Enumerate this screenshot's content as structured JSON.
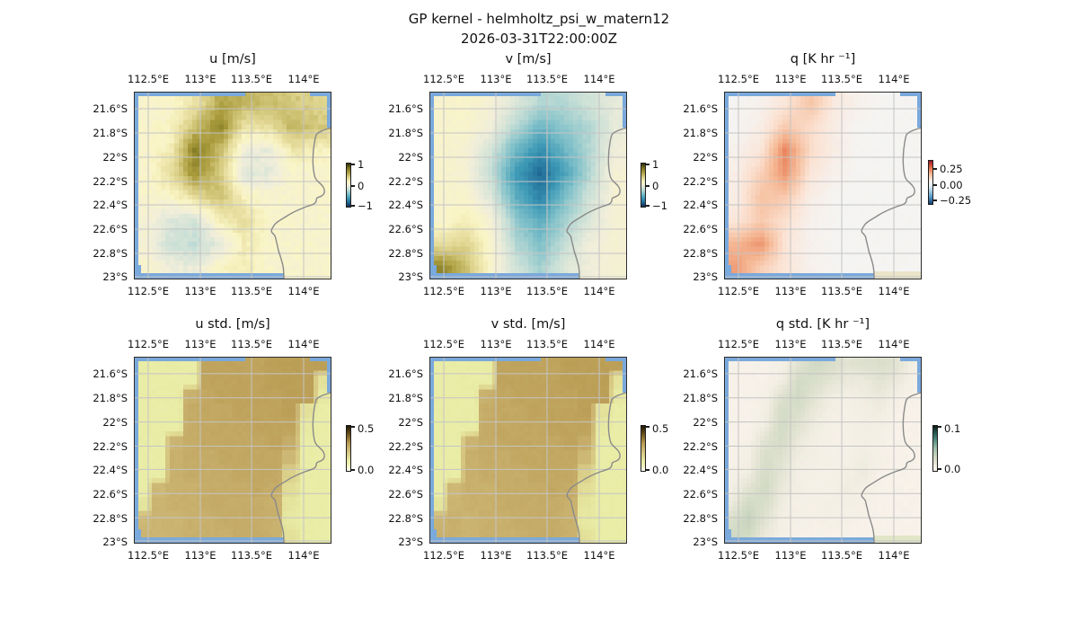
{
  "figure": {
    "title": "GP kernel - helmholtz_psi_w_matern12",
    "subtitle": "2026-03-31T22:00:00Z"
  },
  "axes": {
    "x_ticks": [
      "112.5°E",
      "113°E",
      "113.5°E",
      "114°E"
    ],
    "y_ticks": [
      "21.6°S",
      "21.8°S",
      "22°S",
      "22.2°S",
      "22.4°S",
      "22.6°S",
      "22.8°S",
      "23°S"
    ]
  },
  "panels": [
    {
      "title": "u [m/s]",
      "colorbar_ticks": [
        "1",
        "0",
        "−1"
      ]
    },
    {
      "title": "v [m/s]",
      "colorbar_ticks": [
        "1",
        "0",
        "−1"
      ]
    },
    {
      "title": "q [K hr ⁻¹]",
      "colorbar_ticks": [
        "0.25",
        "0.00",
        "−0.25"
      ]
    },
    {
      "title": "u std. [m/s]",
      "colorbar_ticks": [
        "0.5",
        "0.0"
      ]
    },
    {
      "title": "v std. [m/s]",
      "colorbar_ticks": [
        "0.5",
        "0.0"
      ]
    },
    {
      "title": "q std. [K hr ⁻¹]",
      "colorbar_ticks": [
        "0.1",
        "0.0"
      ]
    }
  ],
  "colors": {
    "ocean_edge": "#7aa9dc",
    "coastline": "#8a8a8a",
    "gridline": "#c4c4c4",
    "frame": "#2b2b2b",
    "land_patch_q": "#eae4c9",
    "land_patch_qstd": "#e0e6c6",
    "background": "#ffffff"
  },
  "colormaps": {
    "uv": [
      [
        0,
        "#132a52"
      ],
      [
        0.1,
        "#1f6b97"
      ],
      [
        0.2,
        "#3e9ab6"
      ],
      [
        0.3,
        "#7fc0c9"
      ],
      [
        0.4,
        "#c6ded6"
      ],
      [
        0.5,
        "#f1eeda"
      ],
      [
        0.57,
        "#faf5c6"
      ],
      [
        0.68,
        "#ddd28b"
      ],
      [
        0.8,
        "#a99b3c"
      ],
      [
        0.9,
        "#77701e"
      ],
      [
        1,
        "#2e2b08"
      ]
    ],
    "q": [
      [
        0,
        "#123c6d"
      ],
      [
        0.15,
        "#4f93c6"
      ],
      [
        0.3,
        "#a6cde2"
      ],
      [
        0.42,
        "#e3eef4"
      ],
      [
        0.5,
        "#f5f4f2"
      ],
      [
        0.58,
        "#fbe3d4"
      ],
      [
        0.7,
        "#f5b793"
      ],
      [
        0.8,
        "#e8825b"
      ],
      [
        0.9,
        "#cc4c38"
      ],
      [
        1,
        "#9a1728"
      ]
    ],
    "std": [
      [
        0,
        "#fdfdf0"
      ],
      [
        0.15,
        "#eef0b2"
      ],
      [
        0.22,
        "#e9eda6"
      ],
      [
        0.35,
        "#dcd28c"
      ],
      [
        0.5,
        "#cbb472"
      ],
      [
        0.62,
        "#b99b52"
      ],
      [
        0.8,
        "#71581f"
      ],
      [
        1,
        "#1f1604"
      ]
    ],
    "qstd": [
      [
        0,
        "#fdf5f0"
      ],
      [
        0.1,
        "#f3efe4"
      ],
      [
        0.2,
        "#e2e3d2"
      ],
      [
        0.32,
        "#ccd7c0"
      ],
      [
        0.5,
        "#9fbfad"
      ],
      [
        0.7,
        "#4d8a7e"
      ],
      [
        0.85,
        "#22564f"
      ],
      [
        1,
        "#0b1a15"
      ]
    ]
  },
  "chart_data": [
    {
      "type": "heatmap",
      "title": "u [m/s]",
      "units": "m/s",
      "vmin": -1,
      "vmax": 1,
      "colorbar_ticks": [
        1,
        0,
        -1
      ],
      "colormap": "uv",
      "noise": 0.07,
      "sharp": false,
      "x_centers": [
        112.45,
        112.7,
        112.95,
        113.2,
        113.45,
        113.7,
        113.95,
        114.2
      ],
      "y_centers": [
        21.55,
        21.75,
        21.95,
        22.15,
        22.35,
        22.55,
        22.75,
        22.95
      ],
      "values": [
        [
          0.1,
          0.1,
          0.25,
          0.55,
          0.5,
          0.45,
          0.4,
          0.35
        ],
        [
          0.1,
          0.15,
          0.45,
          0.7,
          0.25,
          0.3,
          0.5,
          0.4
        ],
        [
          0.1,
          0.2,
          0.75,
          0.45,
          0.0,
          -0.05,
          0.25,
          0.15
        ],
        [
          0.1,
          0.3,
          0.65,
          0.4,
          -0.1,
          -0.05,
          0.1,
          0.1
        ],
        [
          0.1,
          0.1,
          0.3,
          0.45,
          0.15,
          0.1,
          0.1,
          0.1
        ],
        [
          0.05,
          -0.1,
          -0.15,
          0.2,
          0.3,
          0.1,
          0.1,
          0.1
        ],
        [
          0.05,
          -0.15,
          -0.2,
          -0.05,
          0.2,
          0.1,
          0.1,
          0.1
        ],
        [
          0.1,
          0.0,
          -0.05,
          0.15,
          0.2,
          0.1,
          0.1,
          0.1
        ]
      ]
    },
    {
      "type": "heatmap",
      "title": "v [m/s]",
      "units": "m/s",
      "vmin": -1,
      "vmax": 1,
      "colorbar_ticks": [
        1,
        0,
        -1
      ],
      "colormap": "uv",
      "noise": 0.04,
      "sharp": false,
      "x_centers": [
        112.45,
        112.7,
        112.95,
        113.2,
        113.45,
        113.7,
        113.95,
        114.2
      ],
      "y_centers": [
        21.55,
        21.75,
        21.95,
        22.15,
        22.35,
        22.55,
        22.75,
        22.95
      ],
      "values": [
        [
          0.1,
          0.1,
          0.05,
          -0.1,
          -0.25,
          -0.25,
          -0.15,
          -0.05
        ],
        [
          0.1,
          0.1,
          0.0,
          -0.25,
          -0.45,
          -0.35,
          -0.25,
          -0.05
        ],
        [
          0.1,
          0.05,
          -0.15,
          -0.45,
          -0.65,
          -0.45,
          -0.25,
          0.0
        ],
        [
          0.1,
          0.05,
          -0.2,
          -0.6,
          -0.8,
          -0.55,
          -0.25,
          0.05
        ],
        [
          0.1,
          0.1,
          -0.1,
          -0.5,
          -0.7,
          -0.4,
          -0.15,
          0.05
        ],
        [
          0.1,
          0.2,
          0.05,
          -0.35,
          -0.5,
          -0.3,
          -0.1,
          0.05
        ],
        [
          0.3,
          0.35,
          0.1,
          -0.25,
          -0.4,
          -0.2,
          0.0,
          0.05
        ],
        [
          0.7,
          0.45,
          0.1,
          -0.15,
          -0.3,
          -0.1,
          0.0,
          0.05
        ]
      ]
    },
    {
      "type": "heatmap",
      "title": "q [K hr ⁻¹]",
      "units": "K/hr",
      "vmin": -0.3,
      "vmax": 0.3,
      "colorbar_ticks": [
        0.25,
        0.0,
        -0.25
      ],
      "colormap": "q",
      "noise": 0.006,
      "sharp": false,
      "x_centers": [
        112.45,
        112.7,
        112.95,
        113.2,
        113.45,
        113.7,
        113.95,
        114.2
      ],
      "y_centers": [
        21.55,
        21.75,
        21.95,
        22.15,
        22.35,
        22.55,
        22.75,
        22.95
      ],
      "values": [
        [
          0.0,
          0.01,
          0.04,
          0.1,
          0.03,
          0.01,
          0.0,
          0.0
        ],
        [
          0.0,
          0.02,
          0.09,
          0.06,
          0.02,
          0.0,
          0.0,
          0.0
        ],
        [
          0.01,
          0.04,
          0.18,
          0.06,
          0.02,
          0.0,
          0.0,
          0.0
        ],
        [
          0.02,
          0.08,
          0.16,
          0.04,
          0.01,
          0.0,
          0.0,
          0.0
        ],
        [
          0.02,
          0.1,
          0.09,
          0.02,
          0.0,
          0.0,
          0.0,
          0.0
        ],
        [
          0.04,
          0.09,
          0.05,
          0.01,
          0.0,
          0.0,
          0.0,
          0.0
        ],
        [
          0.12,
          0.16,
          0.04,
          0.01,
          0.0,
          0.0,
          0.0,
          0.0
        ],
        [
          0.15,
          0.08,
          0.04,
          0.01,
          0.0,
          0.0,
          0.0,
          0.0
        ]
      ]
    },
    {
      "type": "heatmap",
      "title": "u std. [m/s]",
      "units": "m/s",
      "vmin": 0,
      "vmax": 0.5,
      "colorbar_ticks": [
        0.5,
        0.0
      ],
      "colormap": "std",
      "noise": 0.008,
      "sharp": true,
      "x_centers": [
        112.44,
        112.61,
        112.77,
        112.94,
        113.11,
        113.27,
        113.44,
        113.61,
        113.77,
        113.94,
        114.11,
        114.27
      ],
      "y_centers": [
        21.52,
        21.66,
        21.79,
        21.93,
        22.06,
        22.2,
        22.34,
        22.47,
        22.61,
        22.74,
        22.88,
        23.01
      ],
      "values": [
        [
          0.11,
          0.11,
          0.11,
          0.11,
          0.29,
          0.29,
          0.29,
          0.29,
          0.3,
          0.3,
          0.3,
          0.3
        ],
        [
          0.11,
          0.11,
          0.11,
          0.11,
          0.29,
          0.29,
          0.29,
          0.29,
          0.3,
          0.3,
          0.3,
          0.14
        ],
        [
          0.11,
          0.11,
          0.11,
          0.26,
          0.28,
          0.29,
          0.29,
          0.29,
          0.29,
          0.3,
          0.3,
          0.12
        ],
        [
          0.11,
          0.11,
          0.11,
          0.27,
          0.28,
          0.28,
          0.29,
          0.29,
          0.29,
          0.3,
          0.14,
          0.11
        ],
        [
          0.11,
          0.11,
          0.11,
          0.27,
          0.28,
          0.28,
          0.28,
          0.29,
          0.29,
          0.29,
          0.12,
          0.11
        ],
        [
          0.11,
          0.11,
          0.25,
          0.27,
          0.28,
          0.28,
          0.28,
          0.28,
          0.29,
          0.27,
          0.11,
          0.11
        ],
        [
          0.11,
          0.11,
          0.26,
          0.27,
          0.27,
          0.28,
          0.28,
          0.28,
          0.28,
          0.24,
          0.11,
          0.11
        ],
        [
          0.11,
          0.11,
          0.26,
          0.27,
          0.27,
          0.27,
          0.28,
          0.28,
          0.28,
          0.18,
          0.11,
          0.11
        ],
        [
          0.11,
          0.24,
          0.26,
          0.26,
          0.27,
          0.27,
          0.27,
          0.28,
          0.27,
          0.15,
          0.11,
          0.11
        ],
        [
          0.13,
          0.25,
          0.26,
          0.26,
          0.27,
          0.27,
          0.27,
          0.27,
          0.26,
          0.13,
          0.11,
          0.11
        ],
        [
          0.24,
          0.25,
          0.25,
          0.26,
          0.26,
          0.27,
          0.27,
          0.27,
          0.26,
          0.12,
          0.11,
          0.11
        ],
        [
          0.25,
          0.25,
          0.25,
          0.26,
          0.26,
          0.26,
          0.27,
          0.27,
          0.26,
          0.14,
          0.11,
          0.11
        ]
      ]
    },
    {
      "type": "heatmap",
      "title": "v std. [m/s]",
      "units": "m/s",
      "vmin": 0,
      "vmax": 0.5,
      "colorbar_ticks": [
        0.5,
        0.0
      ],
      "colormap": "std",
      "noise": 0.008,
      "sharp": true,
      "x_centers": [
        112.44,
        112.61,
        112.77,
        112.94,
        113.11,
        113.27,
        113.44,
        113.61,
        113.77,
        113.94,
        114.11,
        114.27
      ],
      "y_centers": [
        21.52,
        21.66,
        21.79,
        21.93,
        22.06,
        22.2,
        22.34,
        22.47,
        22.61,
        22.74,
        22.88,
        23.01
      ],
      "values": [
        [
          0.11,
          0.11,
          0.11,
          0.11,
          0.29,
          0.29,
          0.29,
          0.29,
          0.3,
          0.3,
          0.3,
          0.3
        ],
        [
          0.11,
          0.11,
          0.11,
          0.11,
          0.29,
          0.29,
          0.29,
          0.29,
          0.3,
          0.3,
          0.3,
          0.14
        ],
        [
          0.11,
          0.11,
          0.11,
          0.26,
          0.28,
          0.29,
          0.29,
          0.29,
          0.29,
          0.3,
          0.3,
          0.12
        ],
        [
          0.11,
          0.11,
          0.11,
          0.27,
          0.28,
          0.28,
          0.29,
          0.29,
          0.29,
          0.3,
          0.14,
          0.11
        ],
        [
          0.11,
          0.11,
          0.11,
          0.27,
          0.28,
          0.28,
          0.28,
          0.29,
          0.29,
          0.29,
          0.12,
          0.11
        ],
        [
          0.11,
          0.11,
          0.25,
          0.27,
          0.28,
          0.28,
          0.28,
          0.28,
          0.29,
          0.27,
          0.11,
          0.11
        ],
        [
          0.11,
          0.11,
          0.26,
          0.27,
          0.27,
          0.28,
          0.28,
          0.28,
          0.28,
          0.24,
          0.11,
          0.11
        ],
        [
          0.11,
          0.11,
          0.26,
          0.27,
          0.27,
          0.27,
          0.28,
          0.28,
          0.28,
          0.18,
          0.11,
          0.11
        ],
        [
          0.11,
          0.24,
          0.26,
          0.26,
          0.27,
          0.27,
          0.27,
          0.28,
          0.27,
          0.15,
          0.11,
          0.11
        ],
        [
          0.13,
          0.25,
          0.26,
          0.26,
          0.27,
          0.27,
          0.27,
          0.27,
          0.26,
          0.13,
          0.11,
          0.11
        ],
        [
          0.25,
          0.26,
          0.25,
          0.26,
          0.26,
          0.27,
          0.27,
          0.27,
          0.26,
          0.12,
          0.11,
          0.11
        ],
        [
          0.26,
          0.26,
          0.25,
          0.26,
          0.26,
          0.26,
          0.27,
          0.27,
          0.26,
          0.14,
          0.11,
          0.11
        ]
      ]
    },
    {
      "type": "heatmap",
      "title": "q std. [K hr ⁻¹]",
      "units": "K/hr",
      "vmin": 0,
      "vmax": 0.1,
      "colorbar_ticks": [
        0.1,
        0.0
      ],
      "colormap": "qstd",
      "noise": 0.0015,
      "sharp": false,
      "x_centers": [
        112.44,
        112.61,
        112.77,
        112.94,
        113.11,
        113.27,
        113.44,
        113.61,
        113.77,
        113.94,
        114.11,
        114.27
      ],
      "y_centers": [
        21.52,
        21.66,
        21.79,
        21.93,
        22.06,
        22.2,
        22.34,
        22.47,
        22.61,
        22.74,
        22.88,
        23.01
      ],
      "values": [
        [
          0.006,
          0.006,
          0.006,
          0.008,
          0.02,
          0.03,
          0.025,
          0.02,
          0.022,
          0.025,
          0.02,
          0.01
        ],
        [
          0.006,
          0.006,
          0.006,
          0.01,
          0.028,
          0.025,
          0.02,
          0.015,
          0.015,
          0.02,
          0.015,
          0.008
        ],
        [
          0.006,
          0.006,
          0.008,
          0.022,
          0.03,
          0.02,
          0.012,
          0.01,
          0.012,
          0.015,
          0.01,
          0.006
        ],
        [
          0.006,
          0.006,
          0.01,
          0.028,
          0.025,
          0.015,
          0.01,
          0.008,
          0.01,
          0.012,
          0.006,
          0.006
        ],
        [
          0.006,
          0.006,
          0.012,
          0.03,
          0.02,
          0.012,
          0.008,
          0.008,
          0.01,
          0.01,
          0.006,
          0.006
        ],
        [
          0.006,
          0.008,
          0.022,
          0.028,
          0.015,
          0.01,
          0.008,
          0.008,
          0.01,
          0.008,
          0.006,
          0.006
        ],
        [
          0.006,
          0.01,
          0.026,
          0.022,
          0.012,
          0.01,
          0.008,
          0.008,
          0.012,
          0.008,
          0.006,
          0.006
        ],
        [
          0.008,
          0.012,
          0.028,
          0.018,
          0.01,
          0.008,
          0.008,
          0.01,
          0.014,
          0.006,
          0.006,
          0.006
        ],
        [
          0.01,
          0.02,
          0.03,
          0.015,
          0.01,
          0.008,
          0.008,
          0.012,
          0.01,
          0.006,
          0.006,
          0.006
        ],
        [
          0.015,
          0.03,
          0.025,
          0.012,
          0.008,
          0.008,
          0.01,
          0.01,
          0.008,
          0.006,
          0.006,
          0.006
        ],
        [
          0.025,
          0.035,
          0.02,
          0.01,
          0.008,
          0.008,
          0.008,
          0.008,
          0.006,
          0.006,
          0.006,
          0.006
        ],
        [
          0.03,
          0.028,
          0.015,
          0.008,
          0.006,
          0.006,
          0.006,
          0.006,
          0.006,
          0.006,
          0.006,
          0.006
        ]
      ]
    }
  ]
}
